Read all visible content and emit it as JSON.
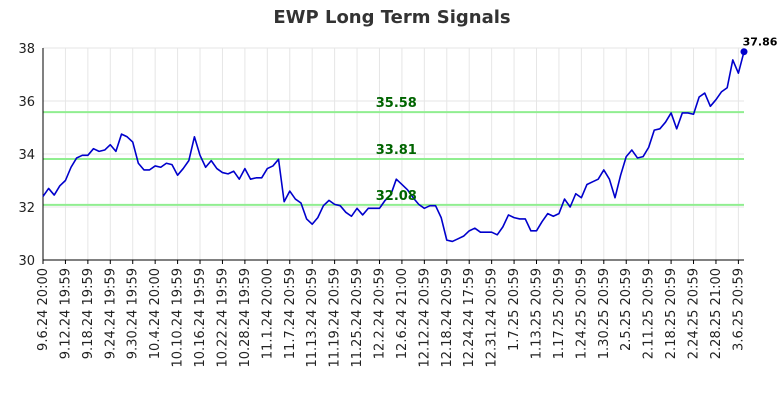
{
  "chart_data": {
    "type": "line",
    "title": "EWP Long Term Signals",
    "xlabel": "",
    "ylabel": "",
    "ylim": [
      30,
      38
    ],
    "y_ticks": [
      30,
      32,
      34,
      36,
      38
    ],
    "grid": true,
    "x_tick_labels": [
      "9.6.24 20:00",
      "9.12.24 19:59",
      "9.18.24 19:59",
      "9.24.24 19:59",
      "9.30.24 19:59",
      "10.4.24 20:00",
      "10.10.24 19:59",
      "10.16.24 19:59",
      "10.22.24 19:59",
      "10.28.24 19:59",
      "11.1.24 20:00",
      "11.7.24 20:59",
      "11.13.24 20:59",
      "11.19.24 20:59",
      "11.25.24 20:59",
      "12.2.24 20:59",
      "12.6.24 21:00",
      "12.12.24 20:59",
      "12.18.24 20:59",
      "12.24.24 17:59",
      "12.31.24 20:59",
      "1.7.25 20:59",
      "1.13.25 20:59",
      "1.17.25 20:59",
      "1.24.25 20:59",
      "1.30.25 20:59",
      "2.5.25 20:59",
      "2.11.25 20:59",
      "2.18.25 20:59",
      "2.24.25 20:59",
      "2.28.25 21:00",
      "3.6.25 20:59"
    ],
    "x_tick_positions": [
      0,
      4,
      8,
      12,
      16,
      20,
      24,
      28,
      32,
      36,
      40,
      44,
      48,
      52,
      56,
      60,
      64,
      68,
      72,
      76,
      80,
      84,
      88,
      92,
      96,
      100,
      104,
      108,
      112,
      116,
      120,
      124
    ],
    "series": [
      {
        "name": "",
        "color": "#0000cc",
        "values": [
          32.4,
          32.7,
          32.45,
          32.8,
          33.0,
          33.5,
          33.85,
          33.95,
          33.95,
          34.2,
          34.1,
          34.15,
          34.35,
          34.1,
          34.75,
          34.65,
          34.45,
          33.65,
          33.4,
          33.4,
          33.55,
          33.5,
          33.65,
          33.6,
          33.2,
          33.45,
          33.75,
          34.65,
          33.95,
          33.5,
          33.75,
          33.45,
          33.3,
          33.25,
          33.35,
          33.05,
          33.45,
          33.05,
          33.1,
          33.1,
          33.45,
          33.55,
          33.8,
          32.2,
          32.6,
          32.3,
          32.15,
          31.55,
          31.35,
          31.6,
          32.05,
          32.25,
          32.1,
          32.05,
          31.8,
          31.65,
          31.95,
          31.7,
          31.95,
          31.95,
          31.95,
          32.25,
          32.45,
          33.05,
          32.85,
          32.65,
          32.35,
          32.1,
          31.95,
          32.05,
          32.05,
          31.6,
          30.75,
          30.7,
          30.8,
          30.9,
          31.1,
          31.2,
          31.05,
          31.05,
          31.05,
          30.95,
          31.25,
          31.7,
          31.6,
          31.55,
          31.55,
          31.1,
          31.1,
          31.45,
          31.75,
          31.65,
          31.75,
          32.3,
          32.0,
          32.5,
          32.35,
          32.85,
          32.95,
          33.05,
          33.4,
          33.05,
          32.35,
          33.2,
          33.9,
          34.15,
          33.85,
          33.9,
          34.25,
          34.9,
          34.95,
          35.2,
          35.55,
          34.95,
          35.55,
          35.55,
          35.5,
          36.15,
          36.3,
          35.8,
          36.05,
          36.35,
          36.5,
          37.55,
          37.05,
          37.86
        ]
      }
    ],
    "levels": [
      {
        "value": 35.58,
        "label": "35.58"
      },
      {
        "value": 33.81,
        "label": "33.81"
      },
      {
        "value": 32.08,
        "label": "32.08"
      }
    ],
    "last_value_label": "37.86",
    "level_color": "#90ee90",
    "level_label_color": "#006400"
  }
}
